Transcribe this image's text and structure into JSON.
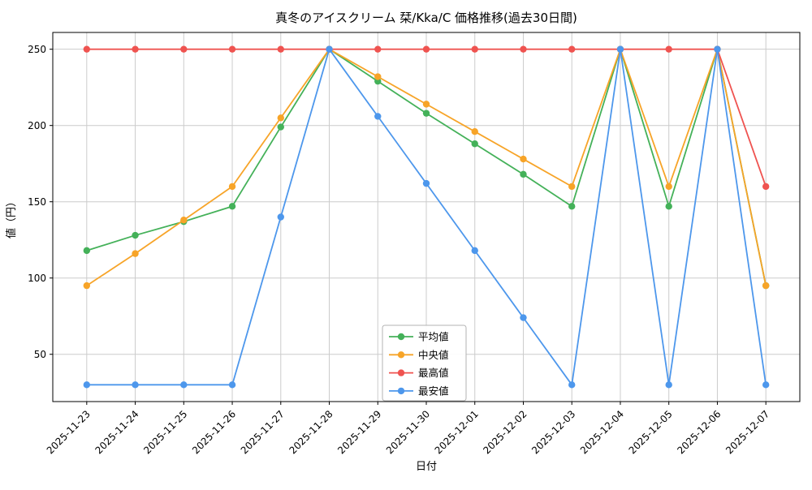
{
  "chart_data": {
    "type": "line",
    "title": "真冬のアイスクリーム 栞/Kka/C 価格推移(過去30日間)",
    "xlabel": "日付",
    "ylabel": "値（円）",
    "grid": true,
    "legend_position": "inside lower-center",
    "categories": [
      "2025-11-23",
      "2025-11-24",
      "2025-11-25",
      "2025-11-26",
      "2025-11-27",
      "2025-11-28",
      "2025-11-29",
      "2025-11-30",
      "2025-12-01",
      "2025-12-02",
      "2025-12-03",
      "2025-12-04",
      "2025-12-05",
      "2025-12-06",
      "2025-12-07"
    ],
    "yticks": [
      50,
      100,
      150,
      200,
      250
    ],
    "ylim": [
      19,
      261
    ],
    "colors": {
      "grid": "#CCCCCC",
      "spine": "#000000",
      "background": "#FFFFFF",
      "text": "#000000"
    },
    "series": [
      {
        "key": "mean",
        "name": "平均値",
        "color": "#44B159",
        "values": [
          118,
          128,
          137,
          147,
          199,
          250,
          229,
          208,
          188,
          168,
          147,
          250,
          147,
          250,
          95
        ]
      },
      {
        "key": "median",
        "name": "中央値",
        "color": "#F7A428",
        "values": [
          95,
          116,
          138,
          160,
          205,
          250,
          232,
          214,
          196,
          178,
          160,
          250,
          160,
          250,
          95
        ]
      },
      {
        "key": "max",
        "name": "最高値",
        "color": "#EF5350",
        "values": [
          250,
          250,
          250,
          250,
          250,
          250,
          250,
          250,
          250,
          250,
          250,
          250,
          250,
          250,
          160
        ]
      },
      {
        "key": "min",
        "name": "最安値",
        "color": "#4D97EC",
        "values": [
          30,
          30,
          30,
          30,
          140,
          250,
          206,
          162,
          118,
          74,
          30,
          250,
          30,
          250,
          30
        ]
      }
    ]
  }
}
